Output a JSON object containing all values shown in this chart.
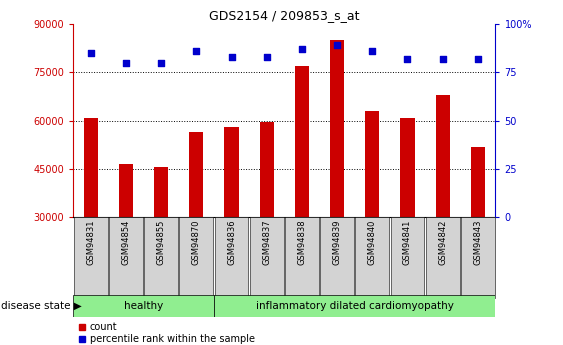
{
  "title": "GDS2154 / 209853_s_at",
  "samples": [
    "GSM94831",
    "GSM94854",
    "GSM94855",
    "GSM94870",
    "GSM94836",
    "GSM94837",
    "GSM94838",
    "GSM94839",
    "GSM94840",
    "GSM94841",
    "GSM94842",
    "GSM94843"
  ],
  "counts": [
    61000,
    46500,
    45500,
    56500,
    58000,
    59500,
    77000,
    85000,
    63000,
    61000,
    68000,
    52000
  ],
  "percentiles": [
    85,
    80,
    80,
    86,
    83,
    83,
    87,
    89,
    86,
    82,
    82,
    82
  ],
  "healthy_count": 4,
  "ylim_left": [
    30000,
    90000
  ],
  "ylim_right": [
    0,
    100
  ],
  "yticks_left": [
    30000,
    45000,
    60000,
    75000,
    90000
  ],
  "yticks_right": [
    0,
    25,
    50,
    75,
    100
  ],
  "bar_color": "#cc0000",
  "dot_color": "#0000cc",
  "healthy_color": "#90ee90",
  "disease_color": "#90ee90",
  "label_bg_color": "#d3d3d3",
  "healthy_label": "healthy",
  "disease_label": "inflammatory dilated cardiomyopathy",
  "disease_state_label": "disease state",
  "legend_count": "count",
  "legend_percentile": "percentile rank within the sample",
  "bar_bottom": 30000,
  "grid_dotted_at": [
    45000,
    60000,
    75000
  ],
  "fig_width": 5.63,
  "fig_height": 3.45,
  "dpi": 100
}
